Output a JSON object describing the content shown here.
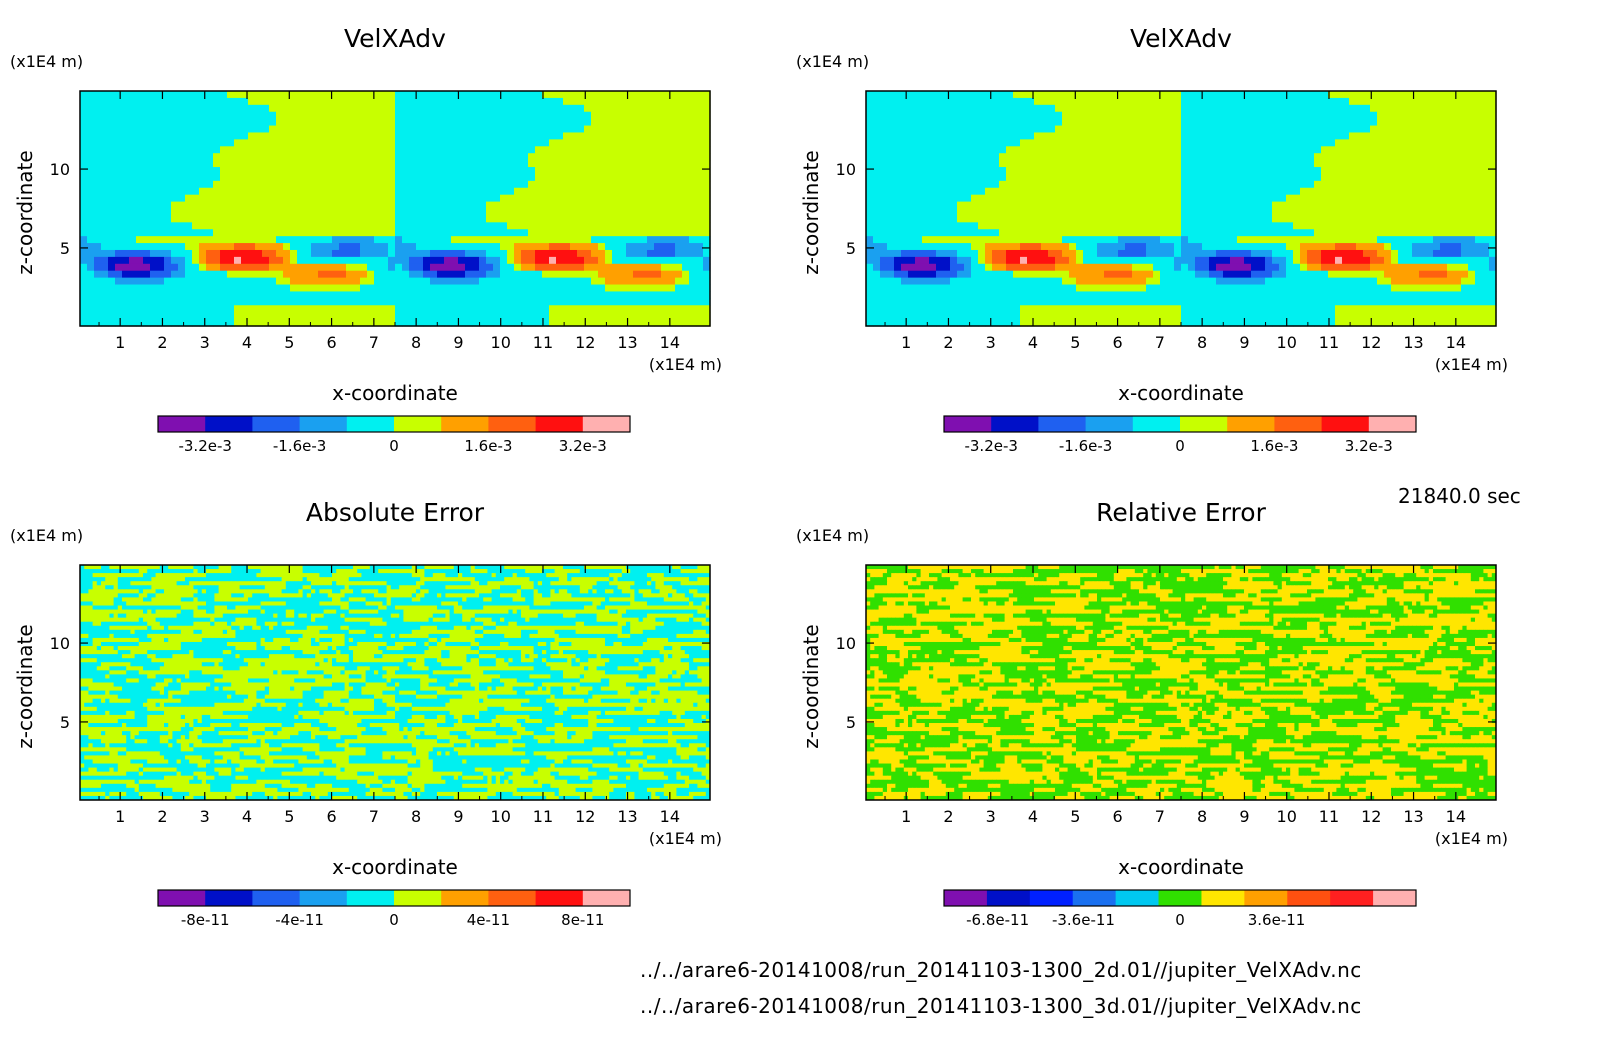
{
  "time_label": "21840.0 sec",
  "file_paths": [
    "../../arare6-20141008/run_20141103-1300_2d.01//jupiter_VelXAdv.nc",
    "../../arare6-20141008/run_20141103-1300_3d.01//jupiter_VelXAdv.nc"
  ],
  "chart_data": [
    {
      "type": "heatmap",
      "title": "VelXAdv",
      "xlabel": "x-coordinate",
      "ylabel": "z-coordinate",
      "x_unit": "(x1E4 m)",
      "y_unit": "(x1E4 m)",
      "x_ticks": [
        "1",
        "2",
        "3",
        "4",
        "5",
        "6",
        "7",
        "8",
        "9",
        "10",
        "11",
        "12",
        "13",
        "14"
      ],
      "y_ticks": [
        "5",
        "10"
      ],
      "xlim": [
        0.05,
        14.95
      ],
      "ylim": [
        0.05,
        14.95
      ],
      "pattern": "wave",
      "colorbar": {
        "colors": [
          "#7f0fb0",
          "#0010c8",
          "#1f60f0",
          "#1aa0f0",
          "#00f0f0",
          "#c8ff00",
          "#ffa000",
          "#ff6010",
          "#ff1010",
          "#ffb0b0"
        ],
        "ticks": [
          "-3.2e-3",
          "-1.6e-3",
          "0",
          "1.6e-3",
          "3.2e-3"
        ],
        "tick_values": [
          -0.0032,
          -0.0016,
          0,
          0.0016,
          0.0032
        ]
      }
    },
    {
      "type": "heatmap",
      "title": "VelXAdv",
      "xlabel": "x-coordinate",
      "ylabel": "z-coordinate",
      "x_unit": "(x1E4 m)",
      "y_unit": "(x1E4 m)",
      "x_ticks": [
        "1",
        "2",
        "3",
        "4",
        "5",
        "6",
        "7",
        "8",
        "9",
        "10",
        "11",
        "12",
        "13",
        "14"
      ],
      "y_ticks": [
        "5",
        "10"
      ],
      "xlim": [
        0.05,
        14.95
      ],
      "ylim": [
        0.05,
        14.95
      ],
      "pattern": "wave",
      "colorbar": {
        "colors": [
          "#7f0fb0",
          "#0010c8",
          "#1f60f0",
          "#1aa0f0",
          "#00f0f0",
          "#c8ff00",
          "#ffa000",
          "#ff6010",
          "#ff1010",
          "#ffb0b0"
        ],
        "ticks": [
          "-3.2e-3",
          "-1.6e-3",
          "0",
          "1.6e-3",
          "3.2e-3"
        ],
        "tick_values": [
          -0.0032,
          -0.0016,
          0,
          0.0016,
          0.0032
        ]
      }
    },
    {
      "type": "heatmap",
      "title": "Absolute Error",
      "xlabel": "x-coordinate",
      "ylabel": "z-coordinate",
      "x_unit": "(x1E4 m)",
      "y_unit": "(x1E4 m)",
      "x_ticks": [
        "1",
        "2",
        "3",
        "4",
        "5",
        "6",
        "7",
        "8",
        "9",
        "10",
        "11",
        "12",
        "13",
        "14"
      ],
      "y_ticks": [
        "5",
        "10"
      ],
      "xlim": [
        0.05,
        14.95
      ],
      "ylim": [
        0.05,
        14.95
      ],
      "pattern": "noise",
      "noise_colors": [
        "#00f0f0",
        "#c8ff00"
      ],
      "colorbar": {
        "colors": [
          "#7f0fb0",
          "#0010c8",
          "#1f60f0",
          "#1aa0f0",
          "#00f0f0",
          "#c8ff00",
          "#ffa000",
          "#ff6010",
          "#ff1010",
          "#ffb0b0"
        ],
        "ticks": [
          "-8e-11",
          "-4e-11",
          "0",
          "4e-11",
          "8e-11"
        ],
        "tick_values": [
          -8e-11,
          -4e-11,
          0,
          4e-11,
          8e-11
        ]
      }
    },
    {
      "type": "heatmap",
      "title": "Relative Error",
      "xlabel": "x-coordinate",
      "ylabel": "z-coordinate",
      "x_unit": "(x1E4 m)",
      "y_unit": "(x1E4 m)",
      "x_ticks": [
        "1",
        "2",
        "3",
        "4",
        "5",
        "6",
        "7",
        "8",
        "9",
        "10",
        "11",
        "12",
        "13",
        "14"
      ],
      "y_ticks": [
        "5",
        "10"
      ],
      "xlim": [
        0.05,
        14.95
      ],
      "ylim": [
        0.05,
        14.95
      ],
      "pattern": "noise",
      "noise_colors": [
        "#30e000",
        "#ffe600"
      ],
      "colorbar": {
        "colors": [
          "#7f0fb0",
          "#0010c8",
          "#0020ff",
          "#1a70f0",
          "#00c8f0",
          "#30e000",
          "#ffe600",
          "#ffa000",
          "#ff5010",
          "#ff2020",
          "#ffb0b0"
        ],
        "ticks": [
          "-6.8e-11",
          "-3.6e-11",
          "0",
          "3.6e-11"
        ],
        "tick_values": [
          -6.8e-11,
          -3.6e-11,
          0,
          3.6e-11
        ]
      }
    }
  ]
}
